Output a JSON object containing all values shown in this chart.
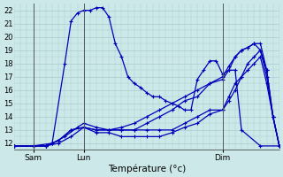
{
  "xlabel": "Température (°c)",
  "bg_color": "#cce8e8",
  "grid_color": "#aacccc",
  "line_color": "#0000bb",
  "ylim": [
    11.5,
    22.5
  ],
  "yticks": [
    12,
    13,
    14,
    15,
    16,
    17,
    18,
    19,
    20,
    21,
    22
  ],
  "xtick_labels": [
    "Sam",
    "Lun",
    "Dim"
  ],
  "xtick_positions": [
    6,
    22,
    66
  ],
  "xvlines": [
    6,
    22,
    66
  ],
  "xlim": [
    0,
    84
  ],
  "lines": [
    [
      0,
      11.8,
      6,
      11.8,
      12,
      12.0,
      16,
      18.0,
      18,
      21.2,
      20,
      21.8,
      22,
      22.0,
      24,
      22.0,
      26,
      22.2,
      28,
      22.2,
      30,
      21.5,
      32,
      19.5,
      34,
      18.5,
      36,
      17.0,
      38,
      16.5,
      40,
      16.2,
      42,
      15.8,
      44,
      15.5,
      46,
      15.5,
      48,
      15.2,
      50,
      15.0,
      52,
      14.8,
      54,
      14.5,
      56,
      14.5,
      58,
      16.8,
      60,
      17.5,
      62,
      18.2,
      64,
      18.2,
      66,
      17.2,
      68,
      17.5,
      70,
      17.5,
      72,
      13.0,
      78,
      11.8,
      84,
      11.8
    ],
    [
      0,
      11.8,
      6,
      11.8,
      10,
      11.8,
      14,
      12.0,
      18,
      12.5,
      22,
      13.2,
      26,
      13.0,
      30,
      13.0,
      34,
      13.0,
      38,
      13.0,
      42,
      13.0,
      46,
      13.0,
      50,
      13.0,
      54,
      13.5,
      58,
      14.0,
      62,
      14.5,
      66,
      14.5,
      68,
      15.5,
      70,
      16.5,
      72,
      17.0,
      74,
      17.5,
      76,
      18.0,
      78,
      18.5,
      80,
      16.5,
      82,
      14.0,
      84,
      11.8
    ],
    [
      0,
      11.8,
      6,
      11.8,
      10,
      11.8,
      14,
      12.2,
      18,
      13.0,
      22,
      13.2,
      26,
      12.8,
      30,
      12.8,
      34,
      12.5,
      38,
      12.5,
      42,
      12.5,
      46,
      12.5,
      50,
      12.8,
      54,
      13.2,
      58,
      13.5,
      62,
      14.2,
      66,
      14.5,
      68,
      15.2,
      70,
      16.0,
      72,
      17.0,
      74,
      18.0,
      76,
      18.5,
      78,
      19.0,
      80,
      17.5,
      82,
      14.0,
      84,
      11.8
    ],
    [
      0,
      11.8,
      6,
      11.8,
      10,
      11.8,
      12,
      12.0,
      16,
      12.5,
      20,
      13.2,
      22,
      13.5,
      26,
      13.2,
      30,
      13.0,
      34,
      13.0,
      38,
      13.0,
      42,
      13.5,
      46,
      14.0,
      50,
      14.5,
      54,
      15.2,
      58,
      15.5,
      62,
      16.5,
      66,
      16.8,
      68,
      17.5,
      70,
      18.5,
      72,
      19.0,
      74,
      19.2,
      76,
      19.5,
      78,
      19.5,
      80,
      17.5,
      82,
      14.0,
      84,
      11.8
    ],
    [
      0,
      11.8,
      6,
      11.8,
      10,
      11.8,
      14,
      12.2,
      18,
      13.0,
      22,
      13.2,
      26,
      13.0,
      30,
      13.0,
      34,
      13.2,
      38,
      13.5,
      42,
      14.0,
      46,
      14.5,
      50,
      15.0,
      54,
      15.5,
      58,
      16.0,
      62,
      16.5,
      66,
      17.0,
      68,
      17.8,
      70,
      18.5,
      72,
      19.0,
      74,
      19.2,
      76,
      19.5,
      78,
      19.0,
      80,
      17.0,
      82,
      14.0,
      84,
      11.8
    ]
  ],
  "marker": "+",
  "markersize": 3,
  "linewidth": 0.9
}
